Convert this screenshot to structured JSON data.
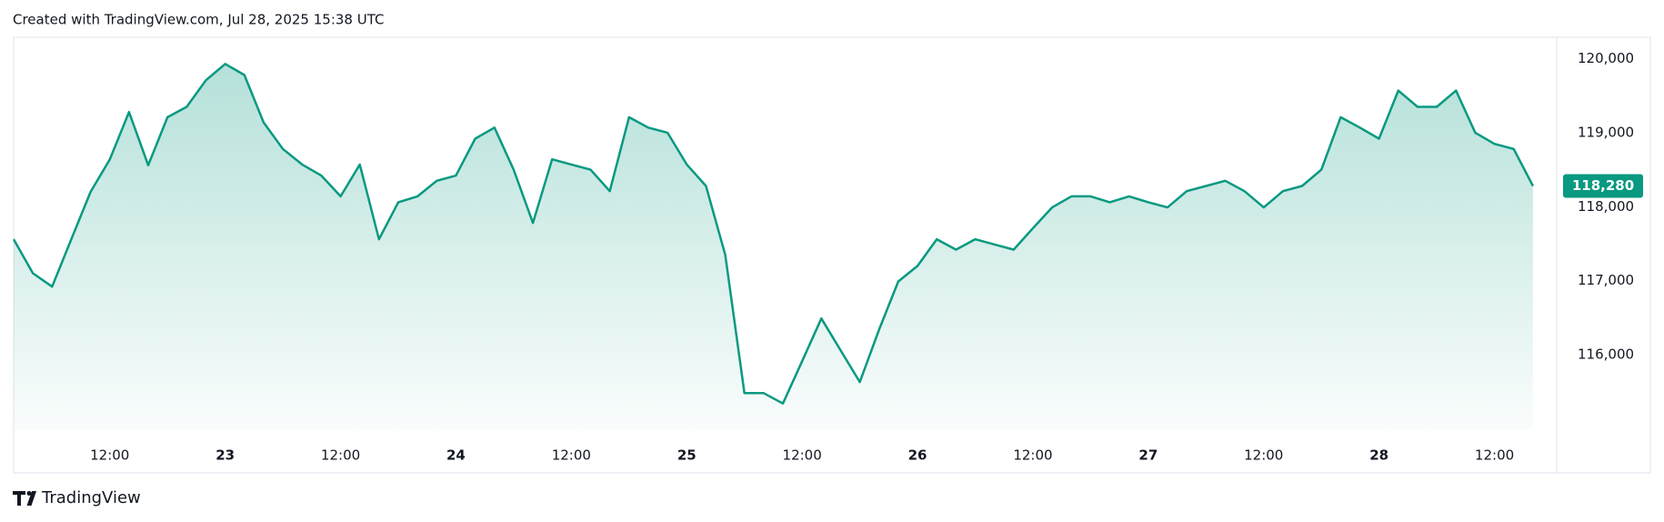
{
  "header": "Created with TradingView.com, Jul 28, 2025 15:38 UTC",
  "footer": "TradingView",
  "chart_data": {
    "type": "area",
    "color": "#089981",
    "grid": false,
    "price_label": "118,280",
    "values": [
      117560,
      117100,
      116920,
      117560,
      118200,
      118640,
      119280,
      118560,
      119210,
      119350,
      119710,
      119930,
      119780,
      119140,
      118780,
      118570,
      118420,
      118140,
      118570,
      117560,
      118060,
      118140,
      118350,
      118420,
      118920,
      119070,
      118500,
      117780,
      118640,
      118570,
      118500,
      118210,
      119210,
      119070,
      119000,
      118570,
      118280,
      117350,
      115480,
      115480,
      115340,
      115910,
      116490,
      116060,
      115630,
      116340,
      116990,
      117200,
      117560,
      117420,
      117560,
      117490,
      117420,
      117710,
      117990,
      118140,
      118140,
      118060,
      118140,
      118060,
      117990,
      118210,
      118280,
      118350,
      118210,
      117990,
      118210,
      118280,
      118500,
      119210,
      119070,
      118920,
      119570,
      119350,
      119350,
      119570,
      119000,
      118850,
      118780,
      118280
    ],
    "xlim": [
      0,
      80
    ],
    "xticks": [
      {
        "value": 5,
        "label": "12:00"
      },
      {
        "value": 11,
        "label": "23"
      },
      {
        "value": 17,
        "label": "12:00"
      },
      {
        "value": 23,
        "label": "24"
      },
      {
        "value": 29,
        "label": "12:00"
      },
      {
        "value": 35,
        "label": "25"
      },
      {
        "value": 41,
        "label": "12:00"
      },
      {
        "value": 47,
        "label": "26"
      },
      {
        "value": 53,
        "label": "12:00"
      },
      {
        "value": 59,
        "label": "27"
      },
      {
        "value": 65,
        "label": "12:00"
      },
      {
        "value": 71,
        "label": "28"
      },
      {
        "value": 77,
        "label": "12:00"
      }
    ],
    "ylim": [
      114980,
      120290
    ],
    "yticks": [
      {
        "value": 116000,
        "label": "116,000"
      },
      {
        "value": 117000,
        "label": "117,000"
      },
      {
        "value": 118000,
        "label": "118,000"
      },
      {
        "value": 119000,
        "label": "119,000"
      },
      {
        "value": 120000,
        "label": "120,000"
      }
    ]
  }
}
